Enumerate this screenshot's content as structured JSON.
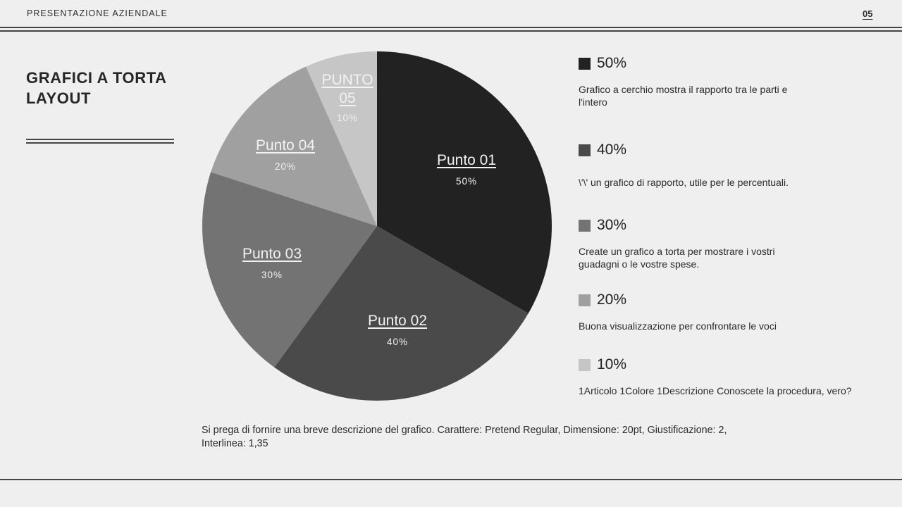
{
  "header": {
    "title": "PRESENTAZIONE AZIENDALE",
    "page_number": "05"
  },
  "slide": {
    "title_line1": "GRAFICI A TORTA",
    "title_line2": "LAYOUT"
  },
  "chart_data": {
    "type": "pie",
    "title": "GRAFICI A TORTA LAYOUT",
    "categories": [
      "Punto 01",
      "Punto 02",
      "Punto 03",
      "Punto 04",
      "PUNTO 05"
    ],
    "values": [
      50,
      40,
      30,
      20,
      10
    ],
    "value_labels": [
      "50%",
      "40%",
      "30%",
      "20%",
      "10%"
    ],
    "colors": [
      "#222222",
      "#4a4a4a",
      "#737373",
      "#a0a0a0",
      "#c6c6c6"
    ],
    "start_angle_deg": -90,
    "direction": "clockwise",
    "legend_position": "right"
  },
  "pie": {
    "slices": [
      {
        "name": "Punto 01",
        "pct": "50%"
      },
      {
        "name": "Punto 02",
        "pct": "40%"
      },
      {
        "name": "Punto 03",
        "pct": "30%"
      },
      {
        "name": "Punto 04",
        "pct": "20%"
      },
      {
        "name_line1": "PUNTO",
        "name_line2": "05",
        "pct": "10%"
      }
    ]
  },
  "legend": {
    "items": [
      {
        "pct": "50%",
        "color": "#222222",
        "desc": "Grafico a cerchio mostra il rapporto tra le parti e l'intero"
      },
      {
        "pct": "40%",
        "color": "#4a4a4a",
        "desc": "\\'\\' un grafico di rapporto, utile per le percentuali."
      },
      {
        "pct": "30%",
        "color": "#737373",
        "desc": "Create un grafico a torta per mostrare i vostri guadagni o le vostre spese."
      },
      {
        "pct": "20%",
        "color": "#a0a0a0",
        "desc": "Buona visualizzazione per confrontare le voci"
      },
      {
        "pct": "10%",
        "color": "#c6c6c6",
        "desc": "1Articolo 1Colore 1Descrizione Conoscete la procedura, vero?"
      }
    ]
  },
  "footnote": "Si prega di fornire una breve descrizione del grafico. Carattere: Pretend Regular, Dimensione: 20pt, Giustificazione: 2, Interlinea: 1,35"
}
